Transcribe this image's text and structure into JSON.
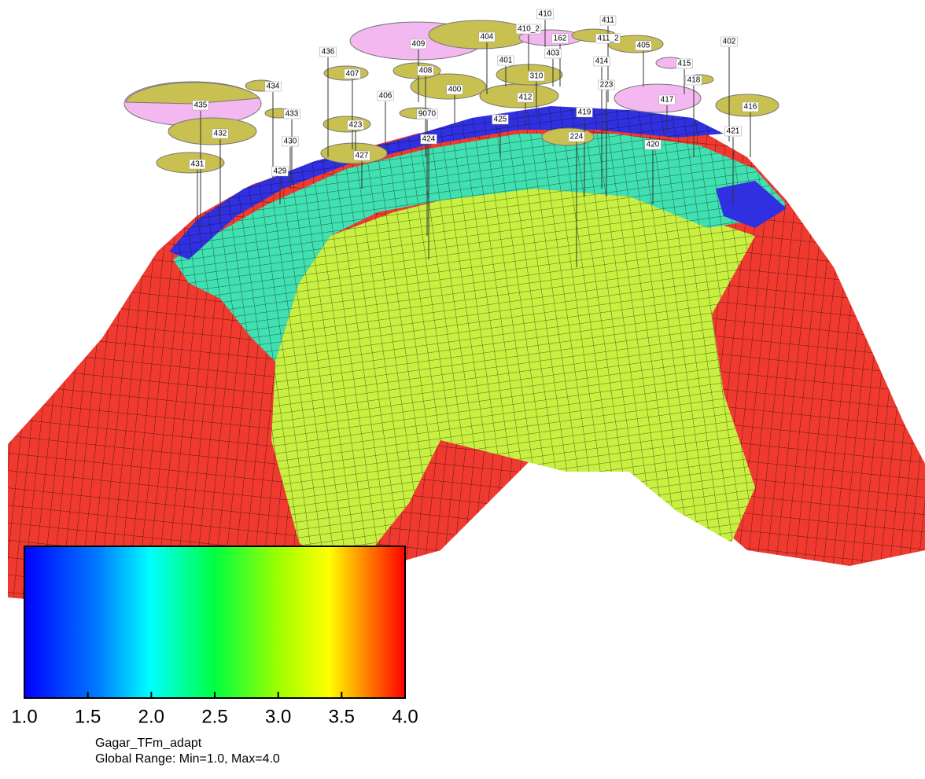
{
  "wells": [
    "410",
    "411",
    "410_2",
    "162",
    "411_2",
    "404",
    "409",
    "405",
    "402",
    "436",
    "403",
    "401",
    "415",
    "414",
    "407",
    "408",
    "310",
    "434",
    "418",
    "223",
    "400",
    "406",
    "412",
    "417",
    "435",
    "416",
    "433",
    "9070",
    "419",
    "425",
    "423",
    "421",
    "432",
    "424",
    "224",
    "430",
    "420",
    "427",
    "431",
    "429"
  ],
  "marker": "!",
  "colorbar": {
    "min": 1,
    "max": 4,
    "ticks": [
      {
        "value": 1,
        "label": "1.0"
      },
      {
        "value": 1.5,
        "label": "1.5"
      },
      {
        "value": 2,
        "label": "2.0"
      },
      {
        "value": 2.5,
        "label": "2.5"
      },
      {
        "value": 3,
        "label": "3.0"
      },
      {
        "value": 3.5,
        "label": "3.5"
      },
      {
        "value": 4,
        "label": "4.0"
      }
    ]
  },
  "caption": {
    "property": "Gagar_TFm_adapt",
    "range": "Global Range: Min=1.0, Max=4.0"
  }
}
